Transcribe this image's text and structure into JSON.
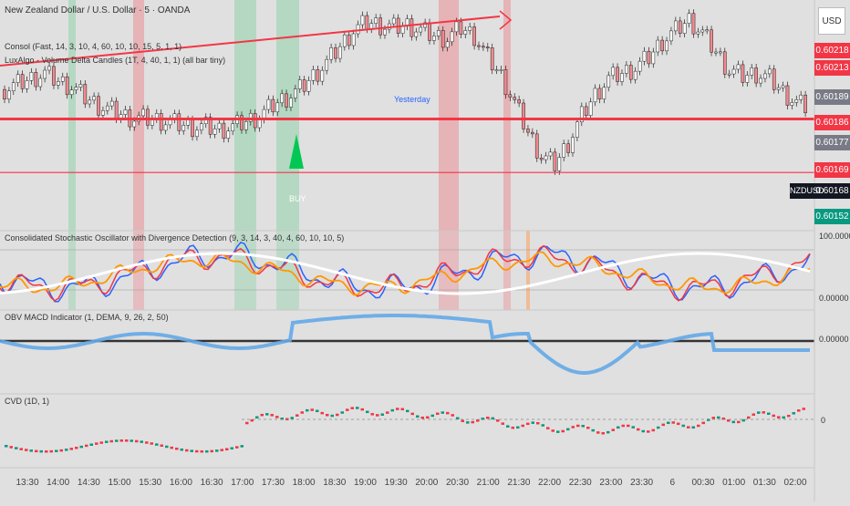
{
  "header": {
    "symbol": "New Zealand Dollar / U.S. Dollar · 5 · OANDA",
    "ind1": "Consol (Fast, 14, 3, 10, 4, 60, 10, 10, 15, 5, 1, 1)",
    "ind2": "LuxAlgo - Volume Delta Candles (1T, 4, 40, 1, 1) (all bar tiny)"
  },
  "currency_button": "USD",
  "price_labels": [
    {
      "text": "0.60218",
      "color": "#f23645"
    },
    {
      "text": "0.60213",
      "color": "#f23645"
    },
    {
      "text": "0.60189",
      "color": "#787b86"
    },
    {
      "text": "0.60186",
      "color": "#f23645"
    },
    {
      "text": "0.60177",
      "color": "#787b86"
    },
    {
      "text": "0.60169",
      "color": "#f23645"
    },
    {
      "text": "0.60168",
      "color": "#131722"
    },
    {
      "text": "0.60152",
      "color": "#089981"
    }
  ],
  "nzdusd_label": "NZDUSD",
  "yesterday_label": "Yesterday",
  "buy_label": "BUY",
  "stoch": {
    "title": "Consolidated Stochastic Oscillator with Divergence Detection (9, 3, 14, 3, 40, 4, 60, 10, 10, 5)",
    "top_label": "100.00000",
    "bottom_label": "0.00000"
  },
  "obv": {
    "title": "OBV MACD Indicator (1, DEMA, 9, 26, 2, 50)",
    "zero_label": "0.00000"
  },
  "cvd": {
    "title": "CVD (1D, 1)",
    "zero_label": "0"
  },
  "x_ticks": [
    "13:30",
    "14:00",
    "14:30",
    "15:00",
    "15:30",
    "16:00",
    "16:30",
    "17:00",
    "17:30",
    "18:00",
    "18:30",
    "19:00",
    "19:30",
    "20:00",
    "20:30",
    "21:00",
    "21:30",
    "22:00",
    "22:30",
    "23:00",
    "23:30",
    "6",
    "00:30",
    "01:00",
    "01:30",
    "02:00"
  ],
  "colors": {
    "up": "#089981",
    "down": "#f23645",
    "highlight_green": "#a5d6b8",
    "highlight_red": "#e8a4a8",
    "stoch_blue": "#2962ff",
    "stoch_red": "#f23645",
    "stoch_orange": "#ff9800",
    "obv_blue": "#64a8e8",
    "obv_red": "#f08a8f"
  },
  "chart_data": {
    "type": "candlestick",
    "panes": [
      "price",
      "stochastic",
      "obv_macd",
      "cvd"
    ],
    "price_series_approx": [
      0.602,
      0.60202,
      0.60204,
      0.60206,
      0.60203,
      0.60201,
      0.60197,
      0.60194,
      0.60192,
      0.6019,
      0.60189,
      0.60189,
      0.60188,
      0.60187,
      0.60186,
      0.60186,
      0.60185,
      0.60186,
      0.60188,
      0.6019,
      0.60194,
      0.60197,
      0.602,
      0.60205,
      0.6021,
      0.60216,
      0.60222,
      0.60225,
      0.60224,
      0.60223,
      0.60224,
      0.60222,
      0.6022,
      0.60219,
      0.60223,
      0.6022,
      0.60212,
      0.60205,
      0.60195,
      0.60184,
      0.60175,
      0.60172,
      0.6018,
      0.6019,
      0.60198,
      0.60204,
      0.60206,
      0.60208,
      0.60212,
      0.60218,
      0.60222,
      0.60226,
      0.60221,
      0.60214,
      0.60207,
      0.60205,
      0.60206,
      0.60204,
      0.60199,
      0.60195,
      0.60193
    ],
    "horizontal_levels": [
      0.60189,
      0.60169
    ]
  }
}
